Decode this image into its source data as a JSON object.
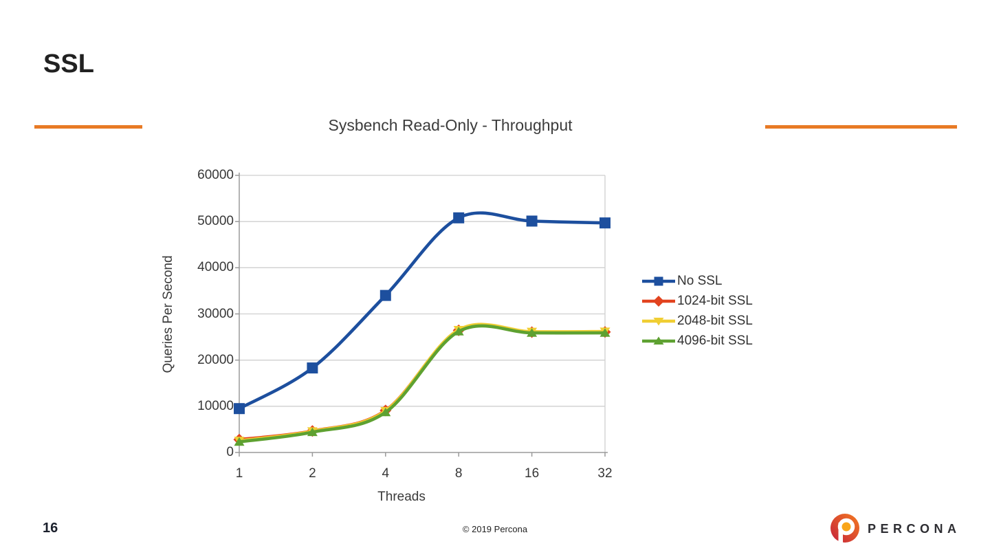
{
  "slide": {
    "title": "SSL",
    "page_number": "16",
    "copyright": "© 2019 Percona",
    "accent_color": "#E87A25"
  },
  "brand": {
    "text": "PERCONA",
    "logo_orange": "#F47B20",
    "logo_red": "#C5203C",
    "logo_dot_yellow": "#F9A51A"
  },
  "chart_data": {
    "type": "line",
    "title": "Sysbench Read-Only - Throughput",
    "xlabel": "Threads",
    "ylabel": "Queries Per Second",
    "categories": [
      "1",
      "2",
      "4",
      "8",
      "16",
      "32"
    ],
    "yticks": [
      0,
      10000,
      20000,
      30000,
      40000,
      50000,
      60000
    ],
    "ylim": [
      0,
      60000
    ],
    "grid": "horizontal",
    "smooth": true,
    "legend_position": "right",
    "series": [
      {
        "name": "No SSL",
        "color": "#1D4F9E",
        "marker": "square",
        "values": [
          9500,
          18300,
          34000,
          50800,
          50100,
          49700
        ]
      },
      {
        "name": "1024-bit SSL",
        "color": "#E2431F",
        "marker": "diamond",
        "values": [
          2800,
          4650,
          9100,
          26450,
          26050,
          26100
        ]
      },
      {
        "name": "2048-bit SSL",
        "color": "#F0CE33",
        "marker": "triangle-down",
        "values": [
          2550,
          4600,
          9000,
          26550,
          26150,
          26200
        ]
      },
      {
        "name": "4096-bit SSL",
        "color": "#5EA131",
        "marker": "triangle-up",
        "values": [
          2300,
          4400,
          8700,
          26200,
          25900,
          25900
        ]
      }
    ]
  }
}
